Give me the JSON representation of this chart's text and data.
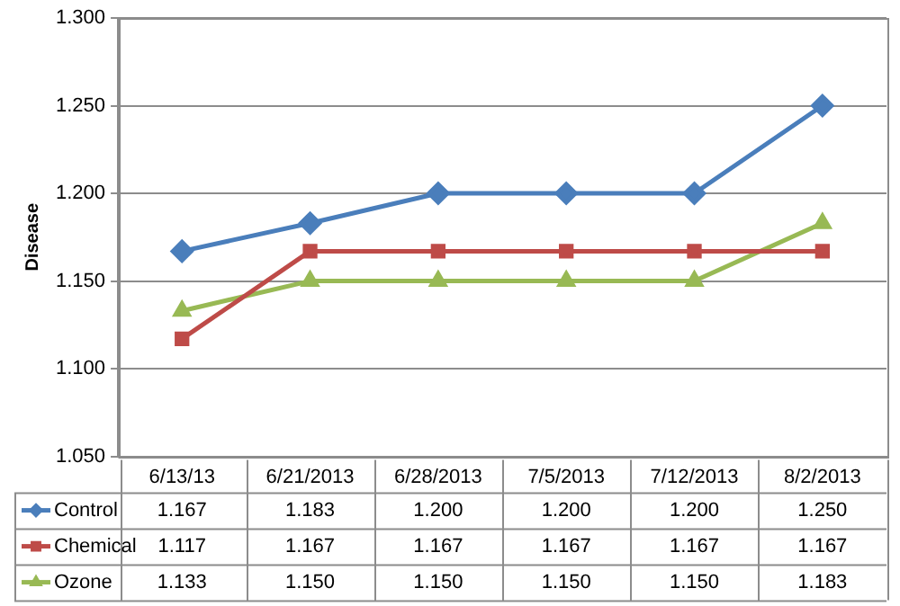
{
  "chart_data": {
    "type": "line",
    "ylabel": "Disease",
    "categories": [
      "6/13/13",
      "6/21/2013",
      "6/28/2013",
      "7/5/2013",
      "7/12/2013",
      "8/2/2013"
    ],
    "series": [
      {
        "name": "Control",
        "color": "#4a7ebb",
        "marker": "diamond",
        "values": [
          1.167,
          1.183,
          1.2,
          1.2,
          1.2,
          1.25
        ],
        "value_labels": [
          "1.167",
          "1.183",
          "1.200",
          "1.200",
          "1.200",
          "1.250"
        ]
      },
      {
        "name": "Chemical",
        "color": "#be4b48",
        "marker": "square",
        "values": [
          1.117,
          1.167,
          1.167,
          1.167,
          1.167,
          1.167
        ],
        "value_labels": [
          "1.117",
          "1.167",
          "1.167",
          "1.167",
          "1.167",
          "1.167"
        ]
      },
      {
        "name": "Ozone",
        "color": "#98b954",
        "marker": "triangle",
        "values": [
          1.133,
          1.15,
          1.15,
          1.15,
          1.15,
          1.183
        ],
        "value_labels": [
          "1.133",
          "1.150",
          "1.150",
          "1.150",
          "1.150",
          "1.183"
        ]
      }
    ],
    "ylim": [
      1.05,
      1.3
    ],
    "yticks": [
      {
        "value": 1.05,
        "label": "1.050"
      },
      {
        "value": 1.1,
        "label": "1.100"
      },
      {
        "value": 1.15,
        "label": "1.150"
      },
      {
        "value": 1.2,
        "label": "1.200"
      },
      {
        "value": 1.25,
        "label": "1.250"
      },
      {
        "value": 1.3,
        "label": "1.300"
      }
    ],
    "grid": "y",
    "legend": "bottom",
    "line_style": "solid"
  }
}
